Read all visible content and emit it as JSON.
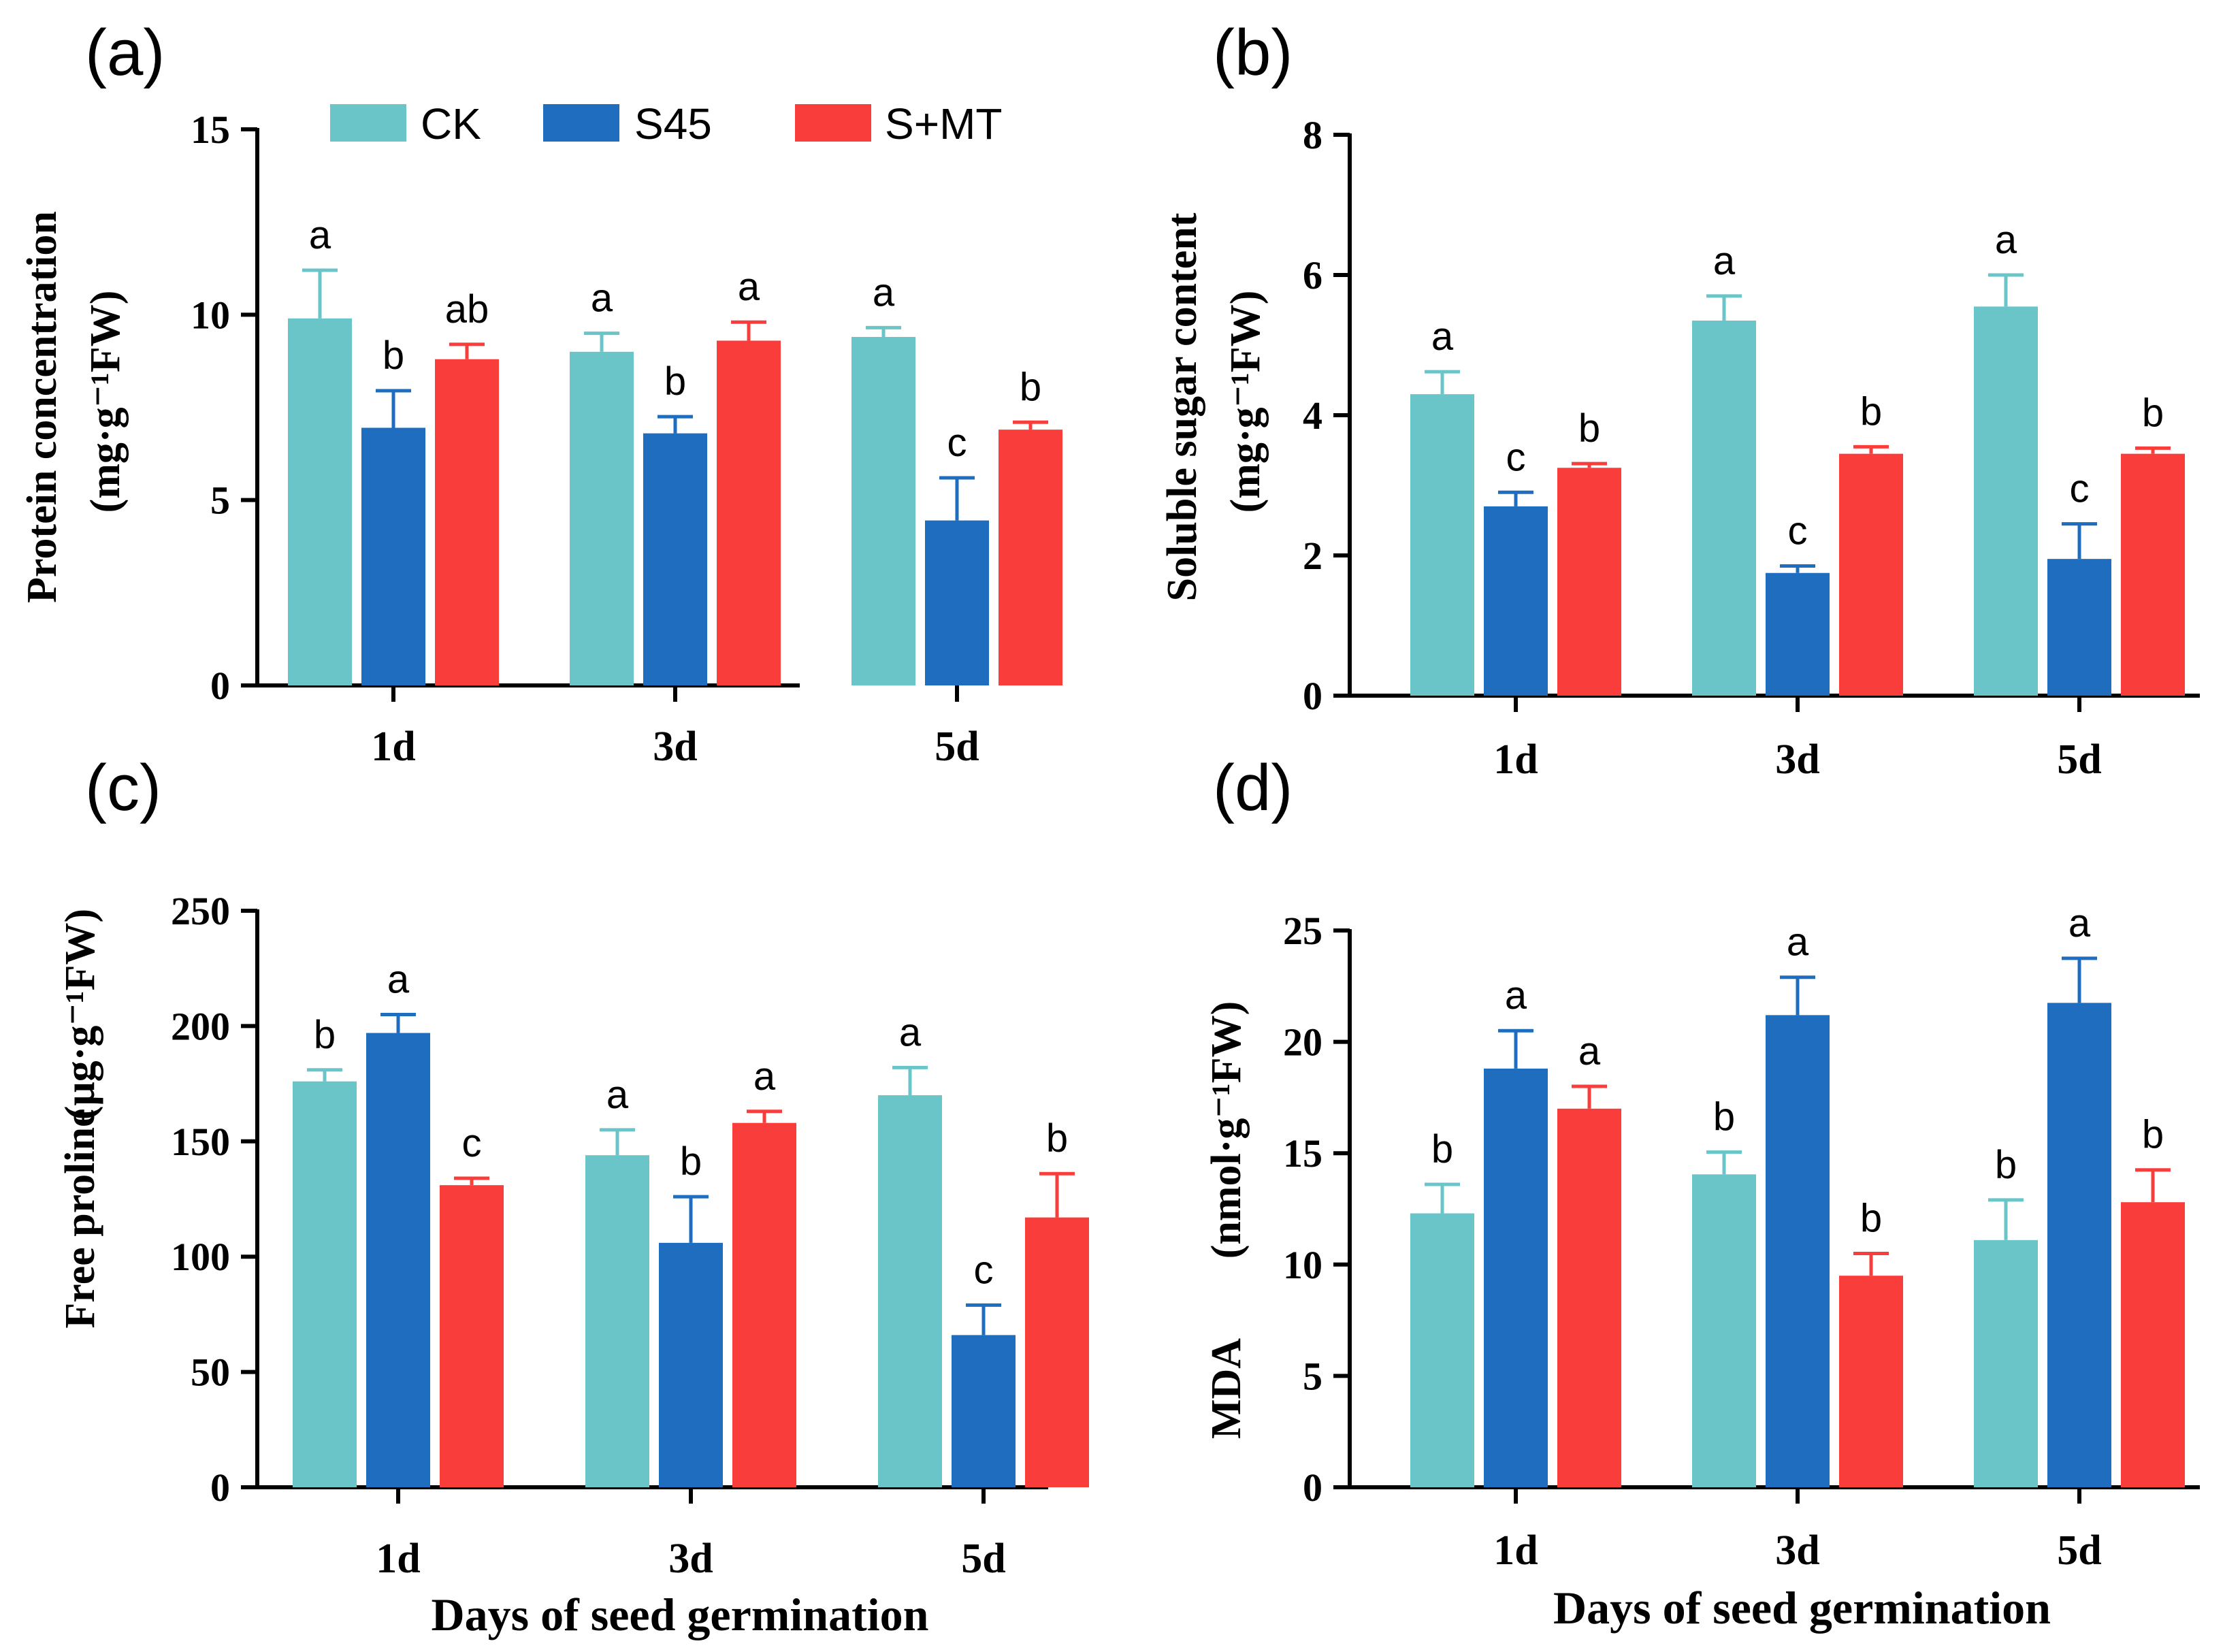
{
  "legend": {
    "items": [
      {
        "label": "CK",
        "color": "#6ac5c8"
      },
      {
        "label": "S45",
        "color": "#1f6dbf"
      },
      {
        "label": "S+MT",
        "color": "#f93d3a"
      }
    ]
  },
  "chart_data": [
    {
      "type": "bar",
      "panel_label": "(a)",
      "title": "",
      "xlabel": "",
      "ylabel": "Protein concentration",
      "ylabel_unit": "(mg·g⁻¹FW)",
      "categories": [
        "1d",
        "3d",
        "5d"
      ],
      "ylim": [
        0,
        15
      ],
      "yticks": [
        "0",
        "5",
        "10",
        "15"
      ],
      "series": [
        {
          "name": "CK",
          "values": [
            9.9,
            9.0,
            9.4
          ],
          "errors": [
            1.3,
            0.5,
            0.25
          ],
          "letters": [
            "a",
            "a",
            "a"
          ]
        },
        {
          "name": "S45",
          "values": [
            6.95,
            6.8,
            4.45
          ],
          "errors": [
            1.0,
            0.45,
            1.15
          ],
          "letters": [
            "b",
            "b",
            "c"
          ]
        },
        {
          "name": "S+MT",
          "values": [
            8.8,
            9.3,
            6.9
          ],
          "errors": [
            0.4,
            0.5,
            0.2
          ],
          "letters": [
            "ab",
            "a",
            "b"
          ]
        }
      ]
    },
    {
      "type": "bar",
      "panel_label": "(b)",
      "title": "",
      "xlabel": "",
      "ylabel": "Soluble sugar content",
      "ylabel_unit": "(mg·g⁻¹FW)",
      "categories": [
        "1d",
        "3d",
        "5d"
      ],
      "ylim": [
        0,
        8
      ],
      "yticks": [
        "0",
        "2",
        "4",
        "6",
        "8"
      ],
      "series": [
        {
          "name": "CK",
          "values": [
            4.3,
            5.35,
            5.55
          ],
          "errors": [
            0.32,
            0.35,
            0.45
          ],
          "letters": [
            "a",
            "a",
            "a"
          ]
        },
        {
          "name": "S45",
          "values": [
            2.7,
            1.75,
            1.95
          ],
          "errors": [
            0.2,
            0.1,
            0.5
          ],
          "letters": [
            "c",
            "c",
            "c"
          ]
        },
        {
          "name": "S+MT",
          "values": [
            3.25,
            3.45,
            3.45
          ],
          "errors": [
            0.06,
            0.1,
            0.08
          ],
          "letters": [
            "b",
            "b",
            "b"
          ]
        }
      ]
    },
    {
      "type": "bar",
      "panel_label": "(c)",
      "title": "",
      "xlabel": "Days of seed germination",
      "ylabel": "Free proline",
      "ylabel_unit": "(μg·g⁻¹FW)",
      "categories": [
        "1d",
        "3d",
        "5d"
      ],
      "ylim": [
        0,
        250
      ],
      "yticks": [
        "0",
        "50",
        "100",
        "150",
        "200",
        "250"
      ],
      "series": [
        {
          "name": "CK",
          "values": [
            176,
            144,
            170
          ],
          "errors": [
            5,
            11,
            12
          ],
          "letters": [
            "b",
            "a",
            "a"
          ]
        },
        {
          "name": "S45",
          "values": [
            197,
            106,
            66
          ],
          "errors": [
            8,
            20,
            13
          ],
          "letters": [
            "a",
            "b",
            "c"
          ]
        },
        {
          "name": "S+MT",
          "values": [
            131,
            158,
            117
          ],
          "errors": [
            3,
            5,
            19
          ],
          "letters": [
            "c",
            "a",
            "b"
          ]
        }
      ]
    },
    {
      "type": "bar",
      "panel_label": "(d)",
      "title": "",
      "xlabel": "Days of seed germination",
      "ylabel": "MDA",
      "ylabel_unit": "(nmol·g⁻¹FW)",
      "categories": [
        "1d",
        "3d",
        "5d"
      ],
      "ylim": [
        0,
        25
      ],
      "yticks": [
        "0",
        "5",
        "10",
        "15",
        "20",
        "25"
      ],
      "series": [
        {
          "name": "CK",
          "values": [
            12.3,
            14.05,
            11.1
          ],
          "errors": [
            1.3,
            1.0,
            1.8
          ],
          "letters": [
            "b",
            "b",
            "b"
          ]
        },
        {
          "name": "S45",
          "values": [
            18.8,
            21.2,
            21.75
          ],
          "errors": [
            1.7,
            1.7,
            2.0
          ],
          "letters": [
            "a",
            "a",
            "a"
          ]
        },
        {
          "name": "S+MT",
          "values": [
            17.0,
            9.5,
            12.8
          ],
          "errors": [
            1.0,
            1.0,
            1.45
          ],
          "letters": [
            "a",
            "b",
            "b"
          ]
        }
      ]
    }
  ]
}
